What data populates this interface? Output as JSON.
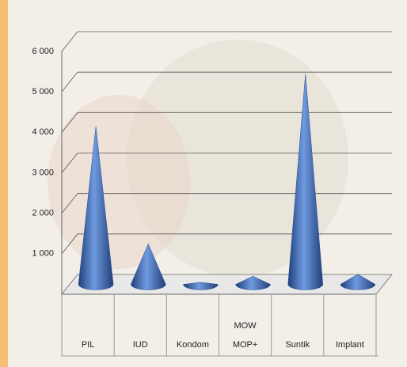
{
  "chart_data": {
    "type": "cone",
    "categories": [
      "PIL",
      "IUD",
      "Kondom",
      "MOW\nMOP+",
      "Suntik",
      "Implant"
    ],
    "values": [
      3900,
      1000,
      50,
      200,
      5200,
      250
    ],
    "color": "#4a78c2",
    "ylim": [
      0,
      6000
    ],
    "yticks": [
      {
        "value": 1000,
        "label": "1 000"
      },
      {
        "value": 2000,
        "label": "2 000"
      },
      {
        "value": 3000,
        "label": "3 000"
      },
      {
        "value": 4000,
        "label": "4 000"
      },
      {
        "value": 5000,
        "label": "5 000"
      },
      {
        "value": 6000,
        "label": "6 000"
      }
    ],
    "grid": true
  }
}
